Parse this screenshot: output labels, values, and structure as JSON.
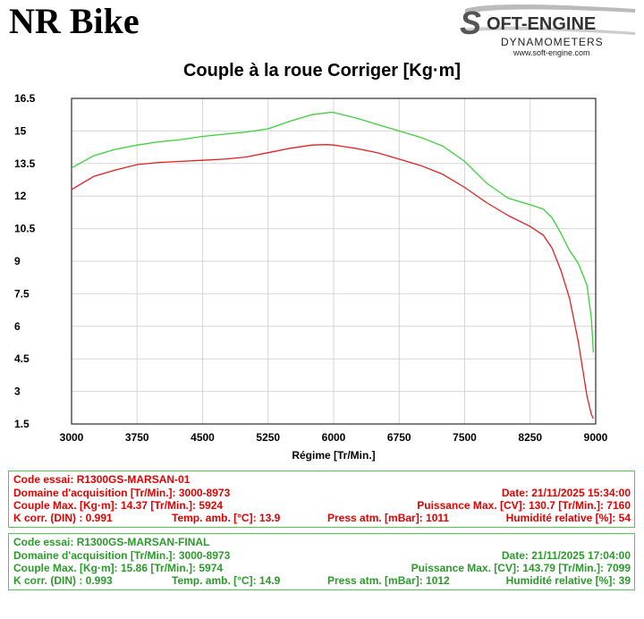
{
  "header": {
    "title": "NR Bike",
    "logo": {
      "line1": "OFT-ENGINE",
      "initial": "S",
      "line2": "DYNAMOMETERS",
      "url": "www.soft-engine.com"
    }
  },
  "chart_data": {
    "type": "line",
    "title": "Couple à la roue Corriger [Kg·m]",
    "xlabel": "Régime [Tr/Min.]",
    "ylabel": "",
    "xlim": [
      3000,
      9000
    ],
    "ylim": [
      1.5,
      16.5
    ],
    "xticks": [
      3000,
      3750,
      4500,
      5250,
      6000,
      6750,
      7500,
      8250,
      9000
    ],
    "yticks": [
      1.5,
      3,
      4.5,
      6,
      7.5,
      9,
      10.5,
      12,
      13.5,
      15,
      16.5
    ],
    "grid": true,
    "series": [
      {
        "color": "#e02020",
        "x": [
          3000,
          3250,
          3500,
          3750,
          4000,
          4250,
          4500,
          4750,
          5000,
          5250,
          5500,
          5750,
          5924,
          6000,
          6250,
          6500,
          6750,
          7000,
          7250,
          7500,
          7750,
          8000,
          8250,
          8400,
          8500,
          8600,
          8700,
          8800,
          8900,
          8950,
          8973
        ],
        "y": [
          12.3,
          12.9,
          13.2,
          13.45,
          13.55,
          13.6,
          13.65,
          13.7,
          13.8,
          14.0,
          14.2,
          14.35,
          14.37,
          14.35,
          14.2,
          14.0,
          13.7,
          13.4,
          13.0,
          12.4,
          11.7,
          11.1,
          10.6,
          10.2,
          9.6,
          8.6,
          7.3,
          5.3,
          2.8,
          1.95,
          1.75
        ]
      },
      {
        "color": "#3ccf3c",
        "x": [
          3000,
          3250,
          3500,
          3750,
          4000,
          4250,
          4500,
          4750,
          5000,
          5250,
          5500,
          5750,
          5974,
          6000,
          6250,
          6500,
          6750,
          7000,
          7250,
          7500,
          7750,
          8000,
          8250,
          8400,
          8500,
          8600,
          8700,
          8800,
          8900,
          8950,
          8973
        ],
        "y": [
          13.3,
          13.85,
          14.15,
          14.35,
          14.5,
          14.6,
          14.75,
          14.85,
          14.95,
          15.1,
          15.45,
          15.75,
          15.86,
          15.85,
          15.6,
          15.3,
          15.0,
          14.7,
          14.3,
          13.6,
          12.6,
          11.9,
          11.6,
          11.4,
          11.0,
          10.3,
          9.5,
          8.9,
          7.9,
          6.4,
          4.8
        ]
      }
    ]
  },
  "tests": [
    {
      "code": "Code essai: R1300GS-MARSAN-01",
      "domaine": "Domaine d'acquisition [Tr/Min.]: 3000-8973",
      "date": "Date: 21/11/2025   15:34:00",
      "couple": "Couple Max. [Kg·m]: 14.37   [Tr/Min.]: 5924",
      "puissance": "Puissance Max. [CV]: 130.7   [Tr/Min.]: 7160",
      "kcorr": "K corr. (DIN) : 0.991",
      "temp": "Temp. amb. [°C]: 13.9",
      "press": "Press atm. [mBar]: 1011",
      "humid": "Humidité relative [%]: 54"
    },
    {
      "code": "Code essai: R1300GS-MARSAN-FINAL",
      "domaine": "Domaine d'acquisition [Tr/Min.]: 3000-8973",
      "date": "Date: 21/11/2025   17:04:00",
      "couple": "Couple Max. [Kg·m]: 15.86   [Tr/Min.]: 5974",
      "puissance": "Puissance Max. [CV]: 143.79   [Tr/Min.]: 7099",
      "kcorr": "K corr. (DIN) : 0.993",
      "temp": "Temp. amb. [°C]: 14.9",
      "press": "Press atm. [mBar]: 1012",
      "humid": "Humidité relative [%]: 39"
    }
  ]
}
